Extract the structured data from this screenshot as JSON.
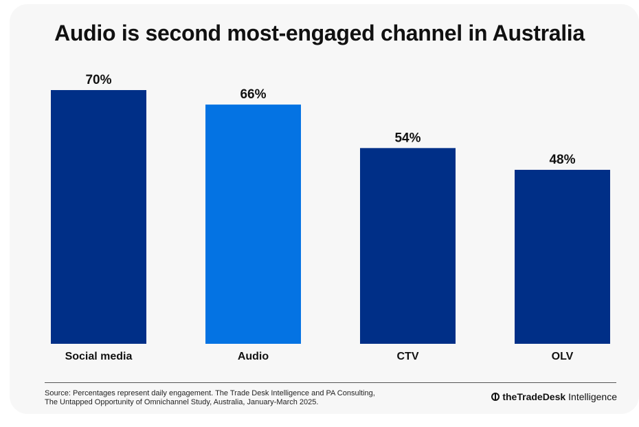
{
  "title": "Audio is second most-engaged channel in Australia",
  "chart_data": {
    "type": "bar",
    "categories": [
      "Social media",
      "Audio",
      "CTV",
      "OLV"
    ],
    "values": [
      70,
      66,
      54,
      48
    ],
    "labels": [
      "70%",
      "66%",
      "54%",
      "48%"
    ],
    "unit": "%",
    "ylim": [
      0,
      70
    ],
    "highlight_index": 1,
    "colors": {
      "default": "#002f87",
      "highlight": "#0473e3"
    },
    "title": "Audio is second most-engaged channel in Australia",
    "xlabel": "",
    "ylabel": "",
    "grid": false
  },
  "footer": {
    "source_line1": "Source: Percentages represent daily engagement. The Trade Desk Intelligence and PA Consulting,",
    "source_line2": "The Untapped Opportunity of Omnichannel Study, Australia, January-March 2025.",
    "brand_bold": "theTradeDesk",
    "brand_light": "Intelligence"
  }
}
